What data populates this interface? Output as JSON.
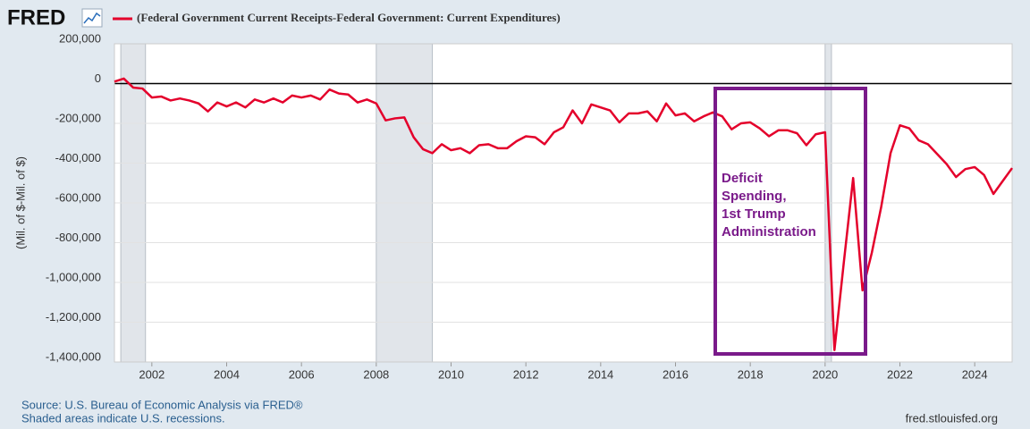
{
  "chart_data": {
    "type": "line",
    "logo": "FRED",
    "y_label": "(Mil. of $-Mil. of $)",
    "source": "Source: U.S. Bureau of Economic Analysis via FRED®",
    "note": "Shaded areas indicate U.S. recessions.",
    "site": "fred.stlouisfed.org",
    "annotation": [
      "Deficit",
      "Spending,",
      "1st Trump",
      "Administration"
    ],
    "xlim": [
      2001,
      2025
    ],
    "xticks": [
      2002,
      2004,
      2006,
      2008,
      2010,
      2012,
      2014,
      2016,
      2018,
      2020,
      2022,
      2024
    ],
    "ylim": [
      -1400000,
      200000
    ],
    "yticks": [
      {
        "value": 200000,
        "label": "200,000"
      },
      0,
      {
        "value": -200000,
        "label": "-200,000"
      },
      {
        "value": -400000,
        "label": "-400,000"
      },
      {
        "value": -600000,
        "label": "-600,000"
      },
      {
        "value": -800000,
        "label": "-800,000"
      },
      {
        "value": -1000000,
        "label": "-1,000,000"
      },
      {
        "value": -1200000,
        "label": "-1,200,000"
      },
      {
        "value": -1400000,
        "label": "-1,400,000"
      }
    ],
    "grid": true,
    "recessions": [
      [
        2001.17,
        2001.83
      ],
      [
        2008.0,
        2009.5
      ],
      [
        2020.0,
        2020.17
      ]
    ],
    "x": [
      2001,
      2001.25,
      2001.5,
      2001.75,
      2002,
      2002.25,
      2002.5,
      2002.75,
      2003,
      2003.25,
      2003.5,
      2003.75,
      2004,
      2004.25,
      2004.5,
      2004.75,
      2005,
      2005.25,
      2005.5,
      2005.75,
      2006,
      2006.25,
      2006.5,
      2006.75,
      2007,
      2007.25,
      2007.5,
      2007.75,
      2008,
      2008.25,
      2008.5,
      2008.75,
      2009,
      2009.25,
      2009.5,
      2009.75,
      2010,
      2010.25,
      2010.5,
      2010.75,
      2011,
      2011.25,
      2011.5,
      2011.75,
      2012,
      2012.25,
      2012.5,
      2012.75,
      2013,
      2013.25,
      2013.5,
      2013.75,
      2014,
      2014.25,
      2014.5,
      2014.75,
      2015,
      2015.25,
      2015.5,
      2015.75,
      2016,
      2016.25,
      2016.5,
      2016.75,
      2017,
      2017.25,
      2017.5,
      2017.75,
      2018,
      2018.25,
      2018.5,
      2018.75,
      2019,
      2019.25,
      2019.5,
      2019.75,
      2020,
      2020.25,
      2020.5,
      2020.75,
      2021,
      2021.25,
      2021.5,
      2021.75,
      2022,
      2022.25,
      2022.5,
      2022.75,
      2023,
      2023.25,
      2023.5,
      2023.75,
      2024,
      2024.25,
      2024.5,
      2024.75,
      2025
    ],
    "series": [
      {
        "name": "(Federal Government Current Receipts-Federal Government: Current Expenditures)",
        "color": "#e4002b",
        "values": [
          10000,
          25000,
          -20000,
          -25000,
          -70000,
          -65000,
          -85000,
          -75000,
          -85000,
          -100000,
          -140000,
          -95000,
          -115000,
          -95000,
          -120000,
          -80000,
          -95000,
          -75000,
          -95000,
          -60000,
          -70000,
          -60000,
          -80000,
          -30000,
          -50000,
          -55000,
          -95000,
          -80000,
          -100000,
          -185000,
          -175000,
          -170000,
          -270000,
          -330000,
          -350000,
          -305000,
          -335000,
          -325000,
          -350000,
          -310000,
          -305000,
          -325000,
          -325000,
          -290000,
          -265000,
          -270000,
          -305000,
          -245000,
          -220000,
          -135000,
          -200000,
          -105000,
          -120000,
          -135000,
          -195000,
          -150000,
          -150000,
          -140000,
          -190000,
          -100000,
          -160000,
          -150000,
          -190000,
          -165000,
          -145000,
          -165000,
          -230000,
          -200000,
          -195000,
          -225000,
          -265000,
          -235000,
          -235000,
          -250000,
          -310000,
          -255000,
          -245000,
          -1340000,
          -900000,
          -475000,
          -1040000,
          -850000,
          -620000,
          -350000,
          -210000,
          -225000,
          -285000,
          -305000,
          -355000,
          -405000,
          -470000,
          -430000,
          -420000,
          -460000,
          -555000,
          -490000,
          -425000
        ]
      }
    ]
  }
}
